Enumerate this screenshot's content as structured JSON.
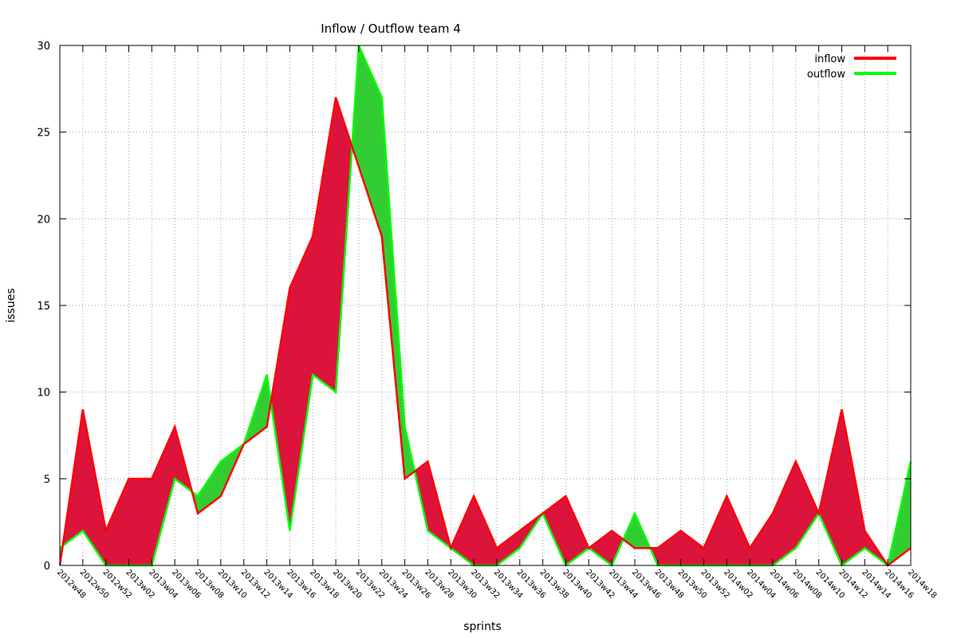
{
  "chart_data": {
    "type": "area",
    "title": "Inflow / Outflow team 4",
    "xlabel": "sprints",
    "ylabel": "issues",
    "ylim": [
      0,
      30
    ],
    "yticks": [
      "0",
      "5",
      "10",
      "15",
      "20",
      "25",
      "30"
    ],
    "grid": true,
    "legend_position": "top-right",
    "categories": [
      "2012w48",
      "2012w50",
      "2012w52",
      "2013w02",
      "2013w04",
      "2013w06",
      "2013w08",
      "2013w10",
      "2013w12",
      "2013w14",
      "2013w16",
      "2013w18",
      "2013w20",
      "2013w22",
      "2013w24",
      "2013w26",
      "2013w28",
      "2013w30",
      "2013w32",
      "2013w34",
      "2013w36",
      "2013w38",
      "2013w40",
      "2013w42",
      "2013w44",
      "2013w46",
      "2013w48",
      "2013w50",
      "2013w52",
      "2014w02",
      "2014w04",
      "2014w06",
      "2014w08",
      "2014w10",
      "2014w12",
      "2014w14",
      "2014w16",
      "2014w18"
    ],
    "series": [
      {
        "name": "inflow",
        "color": "#ff0000",
        "values": [
          0,
          9,
          2,
          5,
          5,
          8,
          3,
          4,
          7,
          8,
          16,
          19,
          27,
          23,
          19,
          5,
          6,
          1,
          4,
          1,
          2,
          3,
          4,
          1,
          2,
          1,
          1,
          2,
          1,
          4,
          1,
          3,
          6,
          3,
          9,
          2,
          0,
          1
        ]
      },
      {
        "name": "outflow",
        "color": "#00ff00",
        "values": [
          1,
          2,
          0,
          0,
          0,
          5,
          4,
          6,
          7,
          11,
          2,
          11,
          10,
          30,
          27,
          8,
          2,
          1,
          0,
          0,
          1,
          3,
          0,
          1,
          0,
          3,
          0,
          0,
          0,
          0,
          0,
          0,
          1,
          3,
          0,
          1,
          0,
          6
        ]
      }
    ],
    "fill_colors": {
      "inflow_above": "#dc143c",
      "outflow_above": "#32cd32"
    }
  }
}
